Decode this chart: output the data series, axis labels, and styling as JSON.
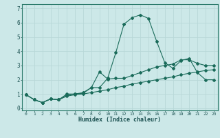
{
  "title": "",
  "xlabel": "Humidex (Indice chaleur)",
  "ylabel": "",
  "bg_color": "#cce8e8",
  "line_color": "#1a6b5a",
  "grid_color": "#b8d8d8",
  "xlim": [
    -0.5,
    23.5
  ],
  "ylim": [
    -0.15,
    7.3
  ],
  "x_ticks": [
    0,
    1,
    2,
    3,
    4,
    5,
    6,
    7,
    8,
    9,
    10,
    11,
    12,
    13,
    14,
    15,
    16,
    17,
    18,
    19,
    20,
    21,
    22,
    23
  ],
  "y_ticks": [
    0,
    1,
    2,
    3,
    4,
    5,
    6,
    7
  ],
  "line1_x": [
    0,
    1,
    2,
    3,
    4,
    5,
    6,
    7,
    8,
    9,
    10,
    11,
    12,
    13,
    14,
    15,
    16,
    17,
    18,
    19,
    20,
    21,
    22,
    23
  ],
  "line1_y": [
    0.95,
    0.6,
    0.4,
    0.65,
    0.6,
    0.9,
    1.0,
    1.1,
    1.45,
    1.45,
    2.1,
    3.9,
    5.9,
    6.35,
    6.55,
    6.3,
    4.7,
    3.2,
    2.8,
    3.35,
    3.5,
    2.5,
    2.0,
    2.0
  ],
  "line2_x": [
    0,
    1,
    2,
    3,
    4,
    5,
    6,
    7,
    8,
    9,
    10,
    11,
    12,
    13,
    14,
    15,
    16,
    17,
    18,
    19,
    20,
    21,
    22,
    23
  ],
  "line2_y": [
    0.95,
    0.6,
    0.4,
    0.65,
    0.6,
    1.0,
    1.0,
    1.05,
    1.45,
    2.55,
    2.05,
    2.1,
    2.1,
    2.3,
    2.5,
    2.7,
    2.9,
    3.0,
    3.1,
    3.4,
    3.4,
    3.15,
    3.0,
    3.0
  ],
  "line3_x": [
    0,
    1,
    2,
    3,
    4,
    5,
    6,
    7,
    8,
    9,
    10,
    11,
    12,
    13,
    14,
    15,
    16,
    17,
    18,
    19,
    20,
    21,
    22,
    23
  ],
  "line3_y": [
    0.95,
    0.6,
    0.4,
    0.65,
    0.6,
    0.85,
    0.95,
    1.0,
    1.1,
    1.2,
    1.3,
    1.45,
    1.55,
    1.7,
    1.8,
    1.9,
    2.0,
    2.1,
    2.2,
    2.35,
    2.45,
    2.55,
    2.65,
    2.7
  ],
  "marker": "D",
  "markersize": 2.0,
  "linewidth": 0.8
}
